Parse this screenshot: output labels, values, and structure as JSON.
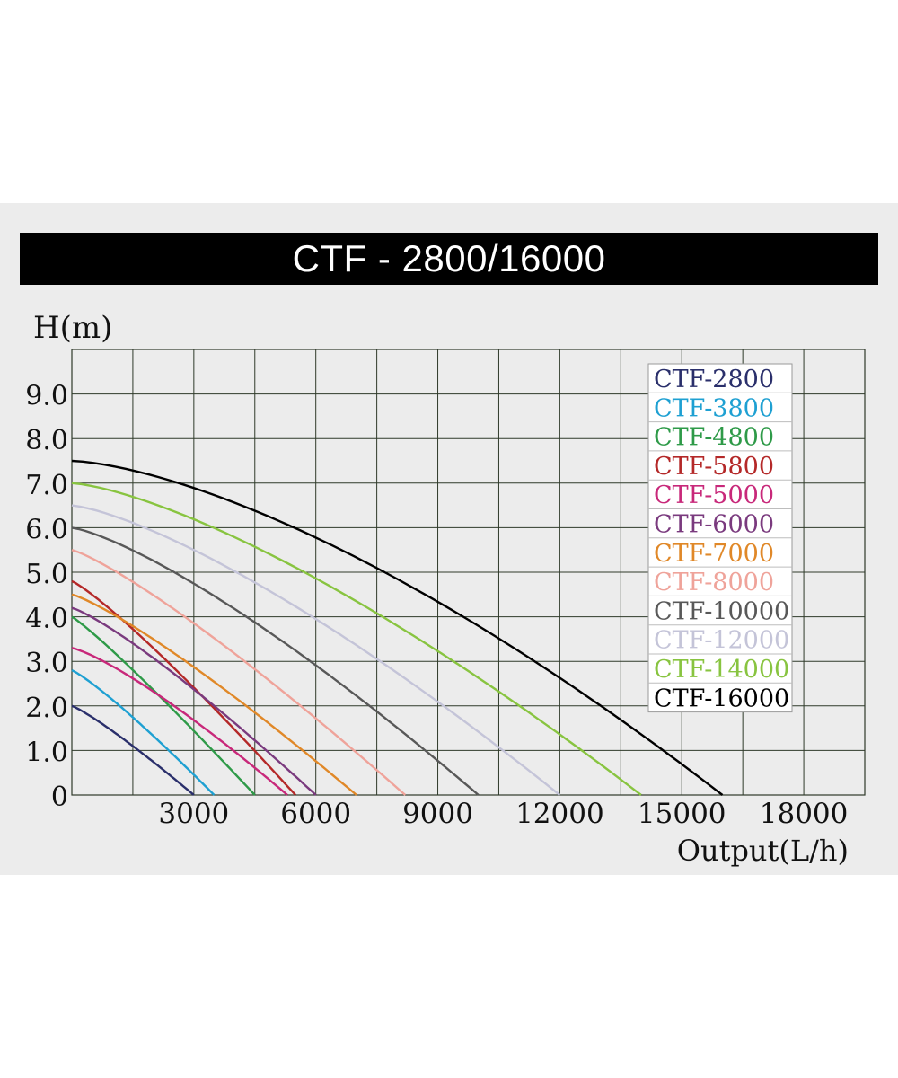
{
  "chart_data": {
    "type": "line",
    "title": "CTF - 2800/16000",
    "xlabel": "Output(L/h)",
    "ylabel": "H(m)",
    "xlim": [
      0,
      19500
    ],
    "ylim": [
      0,
      10
    ],
    "x_ticks": [
      3000,
      6000,
      9000,
      12000,
      15000,
      18000
    ],
    "x_tick_labels": [
      "3000",
      "6000",
      "9000",
      "12000",
      "15000",
      "18000"
    ],
    "y_ticks": [
      0,
      1,
      2,
      3,
      4,
      5,
      6,
      7,
      8,
      9
    ],
    "y_tick_labels": [
      "0",
      "1.0",
      "2.0",
      "3.0",
      "4.0",
      "5.0",
      "6.0",
      "7.0",
      "8.0",
      "9.0"
    ],
    "grid": true,
    "legend_position": "top-right",
    "series": [
      {
        "name": "CTF-2800",
        "color": "#2a2f6b",
        "max_head": 2.0,
        "max_flow": 3000,
        "exp": 1.15
      },
      {
        "name": "CTF-3800",
        "color": "#1ea0d2",
        "max_head": 2.8,
        "max_flow": 3500,
        "exp": 1.15
      },
      {
        "name": "CTF-4800",
        "color": "#2e9a48",
        "max_head": 4.0,
        "max_flow": 4500,
        "exp": 1.1
      },
      {
        "name": "CTF-5800",
        "color": "#b42828",
        "max_head": 4.8,
        "max_flow": 5500,
        "exp": 1.15
      },
      {
        "name": "CTF-5000",
        "color": "#c8287a",
        "max_head": 3.3,
        "max_flow": 5300,
        "exp": 1.25
      },
      {
        "name": "CTF-6000",
        "color": "#7a3a7e",
        "max_head": 4.2,
        "max_flow": 6000,
        "exp": 1.2
      },
      {
        "name": "CTF-7000",
        "color": "#e08828",
        "max_head": 4.5,
        "max_flow": 7000,
        "exp": 1.2
      },
      {
        "name": "CTF-8000",
        "color": "#efa39a",
        "max_head": 5.5,
        "max_flow": 8200,
        "exp": 1.2
      },
      {
        "name": "CTF-10000",
        "color": "#585858",
        "max_head": 6.0,
        "max_flow": 10000,
        "exp": 1.3
      },
      {
        "name": "CTF-12000",
        "color": "#c4c4d8",
        "max_head": 6.5,
        "max_flow": 12000,
        "exp": 1.35
      },
      {
        "name": "CTF-14000",
        "color": "#88c440",
        "max_head": 7.0,
        "max_flow": 14000,
        "exp": 1.4
      },
      {
        "name": "CTF-16000",
        "color": "#000000",
        "max_head": 7.5,
        "max_flow": 16000,
        "exp": 1.5
      }
    ]
  }
}
